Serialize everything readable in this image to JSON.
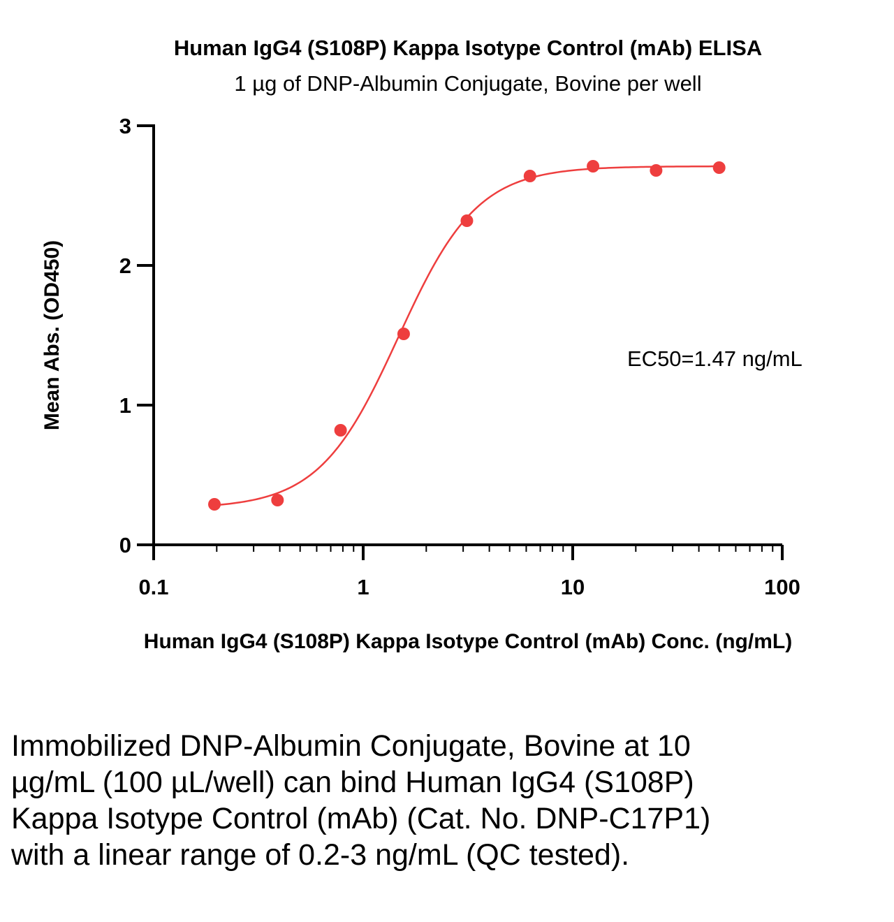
{
  "chart_data": {
    "type": "scatter",
    "title": "Human IgG4 (S108P) Kappa Isotype Control (mAb) ELISA",
    "subtitle": "1 µg of DNP-Albumin Conjugate, Bovine per well",
    "xlabel": "Human IgG4 (S108P) Kappa Isotype Control (mAb) Conc. (ng/mL)",
    "ylabel": "Mean Abs. (OD450)",
    "x_scale": "log",
    "xlim": [
      0.1,
      100
    ],
    "ylim": [
      0,
      3
    ],
    "x_ticks": [
      "0.1",
      "1",
      "10",
      "100"
    ],
    "y_ticks": [
      "0",
      "1",
      "2",
      "3"
    ],
    "grid": false,
    "series": [
      {
        "x": [
          0.195,
          0.39,
          0.78,
          1.56,
          3.125,
          6.25,
          12.5,
          25,
          50
        ],
        "y": [
          0.29,
          0.32,
          0.82,
          1.51,
          2.32,
          2.64,
          2.71,
          2.68,
          2.7
        ],
        "color": "#ee3e3e"
      }
    ],
    "fit": {
      "model": "4PL",
      "bottom": 0.26,
      "top": 2.71,
      "ec50": 1.47,
      "hill": 2.3,
      "color": "#ee3e3e"
    },
    "annotation": "EC50=1.47 ng/mL"
  },
  "caption": "Immobilized DNP-Albumin Conjugate, Bovine at 10 µg/mL (100 µL/well) can bind Human IgG4 (S108P) Kappa Isotype Control (mAb) (Cat. No. DNP-C17P1) with a linear range of 0.2-3 ng/mL (QC tested)."
}
